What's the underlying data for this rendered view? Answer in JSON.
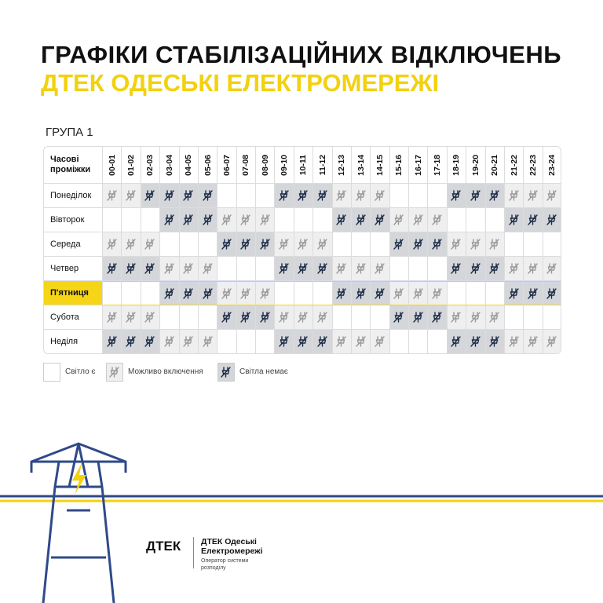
{
  "header": {
    "title": "ГРАФІКИ СТАБІЛІЗАЦІЙНИХ ВІДКЛЮЧЕНЬ",
    "subtitle": "ДТЕК ОДЕСЬКІ ЕЛЕКТРОМЕРЕЖІ"
  },
  "group": "ГРУПА 1",
  "table": {
    "corner": "Часові проміжки",
    "hours": [
      "00-01",
      "01-02",
      "02-03",
      "03-04",
      "04-05",
      "05-06",
      "06-07",
      "07-08",
      "08-09",
      "09-10",
      "10-11",
      "11-12",
      "12-13",
      "13-14",
      "14-15",
      "15-16",
      "16-17",
      "17-18",
      "18-19",
      "19-20",
      "20-21",
      "21-22",
      "22-23",
      "23-24"
    ],
    "highlight_row": 4,
    "rows": [
      {
        "day": "Понеділок",
        "slots": [
          1,
          1,
          2,
          2,
          2,
          2,
          0,
          0,
          0,
          2,
          2,
          2,
          1,
          1,
          1,
          0,
          0,
          0,
          2,
          2,
          2,
          1,
          1,
          1
        ]
      },
      {
        "day": "Вівторок",
        "slots": [
          0,
          0,
          0,
          2,
          2,
          2,
          1,
          1,
          1,
          0,
          0,
          0,
          2,
          2,
          2,
          1,
          1,
          1,
          0,
          0,
          0,
          2,
          2,
          2
        ]
      },
      {
        "day": "Середа",
        "slots": [
          1,
          1,
          1,
          0,
          0,
          0,
          2,
          2,
          2,
          1,
          1,
          1,
          0,
          0,
          0,
          2,
          2,
          2,
          1,
          1,
          1,
          0,
          0,
          0
        ]
      },
      {
        "day": "Четвер",
        "slots": [
          2,
          2,
          2,
          1,
          1,
          1,
          0,
          0,
          0,
          2,
          2,
          2,
          1,
          1,
          1,
          0,
          0,
          0,
          2,
          2,
          2,
          1,
          1,
          1
        ]
      },
      {
        "day": "П'ятниця",
        "slots": [
          0,
          0,
          0,
          2,
          2,
          2,
          1,
          1,
          1,
          0,
          0,
          0,
          2,
          2,
          2,
          1,
          1,
          1,
          0,
          0,
          0,
          2,
          2,
          2
        ]
      },
      {
        "day": "Субота",
        "slots": [
          1,
          1,
          1,
          0,
          0,
          0,
          2,
          2,
          2,
          1,
          1,
          1,
          0,
          0,
          0,
          2,
          2,
          2,
          1,
          1,
          1,
          0,
          0,
          0
        ]
      },
      {
        "day": "Неділя",
        "slots": [
          2,
          2,
          2,
          1,
          1,
          1,
          0,
          0,
          0,
          2,
          2,
          2,
          1,
          1,
          1,
          0,
          0,
          0,
          2,
          2,
          2,
          1,
          1,
          1
        ]
      }
    ]
  },
  "legend": [
    "Світло є",
    "Можливо включення",
    "Світла немає"
  ],
  "footer": {
    "logo": "ДТЕК",
    "name": "ДТЕК Одеські Електромережі",
    "tagline": "Оператор системи розподілу"
  }
}
